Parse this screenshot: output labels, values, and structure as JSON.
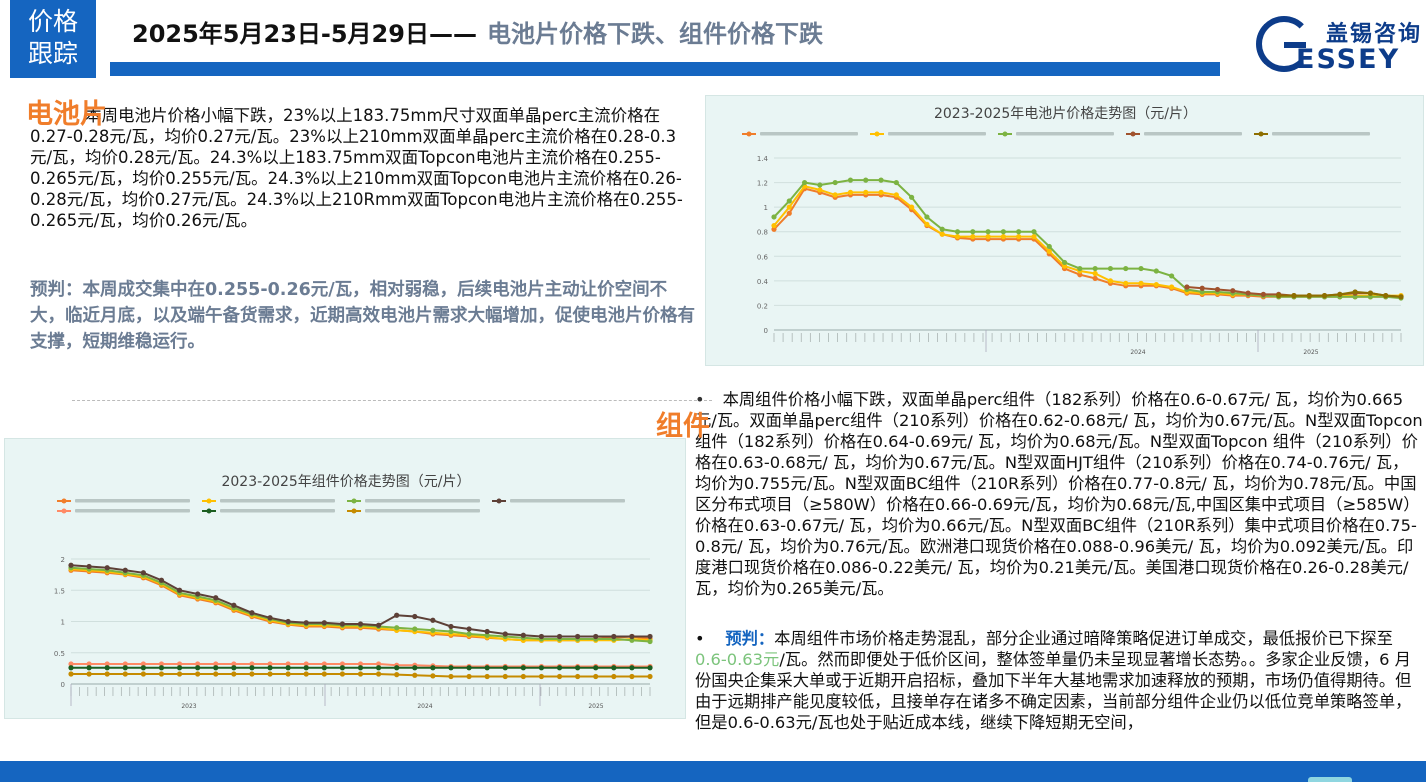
{
  "header": {
    "tag": "价格跟踪",
    "tag_line1": "价格",
    "tag_line2": "跟踪",
    "title_date": "2025年5月23日-5月29日——",
    "title_sub": "电池片价格下跌、组件价格下跌",
    "logo_cn": "盖锡咨询",
    "logo_en": "ESSEY"
  },
  "cell": {
    "label": "电池片",
    "text": "本周电池片价格小幅下跌，23%以上183.75mm尺寸双面单晶perc主流价格在0.27-0.28元/瓦，均价0.27元/瓦。23%以上210mm双面单晶perc主流价格在0.28-0.3元/瓦，均价0.28元/瓦。24.3%以上183.75mm双面Topcon电池片主流价格在0.255-0.265元/瓦，均价0.255元/瓦。24.3%以上210mm双面Topcon电池片主流价格在0.26-0.28元/瓦，均价0.27元/瓦。24.3%以上210Rmm双面Topcon电池片主流价格在0.255-0.265元/瓦，均价0.26元/瓦。",
    "forecast": "预判：本周成交集中在0.255-0.26元/瓦，相对弱稳，后续电池片主动让价空间不大，临近月底，以及端午备货需求，近期高效电池片需求大幅增加，促使电池片价格有支撑，短期维稳运行。"
  },
  "module": {
    "label": "组件",
    "bullet1": "•",
    "text": "本周组件价格小幅下跌，双面单晶perc组件（182系列）价格在0.6-0.67元/ 瓦，均价为0.665元/瓦。双面单晶perc组件（210系列）价格在0.62-0.68元/ 瓦，均价为0.67元/瓦。N型双面Topcon 组件（182系列）价格在0.64-0.69元/ 瓦，均价为0.68元/瓦。N型双面Topcon 组件（210系列）价格在0.63-0.68元/ 瓦，均价为0.67元/瓦。N型双面HJT组件（210系列）价格在0.74-0.76元/ 瓦，均价为0.755元/瓦。N型双面BC组件（210R系列）价格在0.77-0.8元/ 瓦，均价为0.78元/瓦。中国区分布式项目（≥580W）价格在0.66-0.69元/瓦，均价为0.68元/瓦,中国区集中式项目（≥585W）价格在0.63-0.67元/ 瓦，均价为0.66元/瓦。N型双面BC组件（210R系列）集中式项目价格在0.75-0.8元/ 瓦，均价为0.76元/瓦。欧洲港口现货价格在0.088-0.96美元/ 瓦，均价为0.092美元/瓦。印度港口现货价格在0.086-0.22美元/ 瓦，均价为0.21美元/瓦。美国港口现货价格在0.26-0.28美元/ 瓦，均价为0.265美元/瓦。",
    "bullet2": "•",
    "forecast_label": "预判：",
    "forecast_a": "本周组件市场价格走势混乱，部分企业通过暗降策略促进订单成交，最低报价已下探至 ",
    "forecast_green": "0.6-0.63元",
    "forecast_b": "/瓦。然而即便处于低价区间，整体签单量仍未呈现显著增长态势。。多家企业反馈，6 月份国央企集采大单或于近期开启招标，叠加下半年大基地需求加速释放的预期，市场仍值得期待。但由于远期排产能见度较低，且接单存在诸多不确定因素，当前部分组件企业仍以低位竞单策略签单，但是0.6-0.63元/瓦也处于贴近成本线，继续下降短期无空间，"
  },
  "chart_data": [
    {
      "type": "line",
      "title": "2023-2025年电池片价格走势图（元/片）",
      "ylim": [
        0,
        1.4
      ],
      "yticks": [
        "0",
        "0.2",
        "0.4",
        "0.6",
        "0.8",
        "1",
        "1.2",
        "1.4"
      ],
      "xgroups": [
        "2024",
        "2025"
      ],
      "legend_position": "top",
      "grid": true,
      "series": [
        {
          "color": "#f07d2a",
          "values": [
            0.82,
            0.95,
            1.15,
            1.12,
            1.08,
            1.1,
            1.1,
            1.1,
            1.08,
            0.98,
            0.85,
            0.78,
            0.75,
            0.74,
            0.74,
            0.74,
            0.74,
            0.74,
            0.62,
            0.5,
            0.45,
            0.42,
            0.38,
            0.36,
            0.36,
            0.36,
            0.34,
            0.3,
            0.29,
            0.29,
            0.28,
            0.28,
            0.27,
            0.27,
            0.27,
            0.27,
            0.27,
            0.27,
            0.27,
            0.27,
            0.27,
            0.27
          ]
        },
        {
          "color": "#ffc000",
          "values": [
            0.85,
            1.0,
            1.17,
            1.14,
            1.1,
            1.12,
            1.12,
            1.12,
            1.1,
            1.0,
            0.86,
            0.78,
            0.76,
            0.76,
            0.76,
            0.76,
            0.76,
            0.76,
            0.64,
            0.52,
            0.48,
            0.46,
            0.4,
            0.38,
            0.38,
            0.37,
            0.35,
            0.31,
            0.3,
            0.3,
            0.29,
            0.29,
            0.28,
            0.28,
            0.28,
            0.28,
            0.28,
            0.28,
            0.28,
            0.28,
            0.28,
            0.28
          ]
        },
        {
          "color": "#7cb342",
          "values": [
            0.92,
            1.05,
            1.2,
            1.18,
            1.2,
            1.22,
            1.22,
            1.22,
            1.2,
            1.08,
            0.92,
            0.82,
            0.8,
            0.8,
            0.8,
            0.8,
            0.8,
            0.8,
            0.68,
            0.55,
            0.5,
            0.5,
            0.5,
            0.5,
            0.5,
            0.48,
            0.44,
            0.33,
            0.31,
            0.31,
            0.3,
            0.29,
            0.28,
            0.27,
            0.27,
            0.27,
            0.27,
            0.27,
            0.27,
            0.27,
            0.27,
            0.26
          ]
        },
        {
          "color": "#a0522d",
          "values": [
            null,
            null,
            null,
            null,
            null,
            null,
            null,
            null,
            null,
            null,
            null,
            null,
            null,
            null,
            null,
            null,
            null,
            null,
            null,
            null,
            null,
            null,
            null,
            null,
            null,
            null,
            null,
            0.35,
            0.34,
            0.33,
            0.32,
            0.3,
            0.29,
            0.29,
            0.28,
            0.28,
            0.28,
            0.29,
            0.3,
            0.3,
            0.28,
            0.27
          ]
        },
        {
          "color": "#8d6e00",
          "values": [
            null,
            null,
            null,
            null,
            null,
            null,
            null,
            null,
            null,
            null,
            null,
            null,
            null,
            null,
            null,
            null,
            null,
            null,
            null,
            null,
            null,
            null,
            null,
            null,
            null,
            null,
            null,
            null,
            null,
            null,
            null,
            null,
            null,
            0.28,
            0.28,
            0.28,
            0.28,
            0.29,
            0.31,
            0.3,
            0.28,
            0.27
          ]
        }
      ]
    },
    {
      "type": "line",
      "title": "2023-2025年组件价格走势图（元/片）",
      "ylim": [
        0,
        2
      ],
      "yticks": [
        "0",
        "0.5",
        "1",
        "1.5",
        "2"
      ],
      "xgroups": [
        "2023",
        "2024",
        "2025"
      ],
      "legend_position": "top",
      "grid": true,
      "series": [
        {
          "color": "#f07d2a",
          "values": [
            1.82,
            1.8,
            1.78,
            1.75,
            1.7,
            1.58,
            1.42,
            1.36,
            1.3,
            1.18,
            1.08,
            1.0,
            0.95,
            0.92,
            0.92,
            0.9,
            0.9,
            0.88,
            0.86,
            0.84,
            0.8,
            0.78,
            0.76,
            0.74,
            0.72,
            0.7,
            0.7,
            0.7,
            0.7,
            0.72,
            0.74,
            0.76,
            0.72
          ]
        },
        {
          "color": "#ffc000",
          "values": [
            1.84,
            1.82,
            1.8,
            1.76,
            1.72,
            1.6,
            1.44,
            1.38,
            1.32,
            1.2,
            1.1,
            1.02,
            0.96,
            0.94,
            0.94,
            0.92,
            0.92,
            0.9,
            0.86,
            0.84,
            0.82,
            0.8,
            0.78,
            0.75,
            0.72,
            0.7,
            0.7,
            0.7,
            0.7,
            0.7,
            0.7,
            0.72,
            0.7
          ]
        },
        {
          "color": "#7cb342",
          "values": [
            1.86,
            1.84,
            1.82,
            1.78,
            1.74,
            1.62,
            1.46,
            1.4,
            1.34,
            1.22,
            1.12,
            1.04,
            0.98,
            0.96,
            0.96,
            0.94,
            0.94,
            0.92,
            0.9,
            0.88,
            0.86,
            0.84,
            0.8,
            0.78,
            0.76,
            0.74,
            0.72,
            0.72,
            0.72,
            0.72,
            0.72,
            0.7,
            0.68
          ]
        },
        {
          "color": "#5d4037",
          "values": [
            1.9,
            1.88,
            1.86,
            1.82,
            1.78,
            1.66,
            1.5,
            1.44,
            1.38,
            1.26,
            1.14,
            1.06,
            1.0,
            0.98,
            0.98,
            0.96,
            0.96,
            0.94,
            1.1,
            1.08,
            1.02,
            0.92,
            0.88,
            0.84,
            0.8,
            0.78,
            0.76,
            0.76,
            0.76,
            0.76,
            0.76,
            0.76,
            0.76
          ]
        },
        {
          "color": "#ff8a65",
          "values": [
            0.32,
            0.32,
            0.32,
            0.32,
            0.32,
            0.32,
            0.32,
            0.32,
            0.32,
            0.32,
            0.32,
            0.32,
            0.32,
            0.32,
            0.32,
            0.32,
            0.32,
            0.32,
            0.3,
            0.3,
            0.29,
            0.28,
            0.28,
            0.28,
            0.28,
            0.28,
            0.28,
            0.28,
            0.28,
            0.28,
            0.28,
            0.28,
            0.28
          ]
        },
        {
          "color": "#1b5e20",
          "values": [
            0.26,
            0.26,
            0.26,
            0.26,
            0.26,
            0.26,
            0.26,
            0.26,
            0.26,
            0.26,
            0.26,
            0.26,
            0.26,
            0.26,
            0.26,
            0.26,
            0.26,
            0.26,
            0.26,
            0.26,
            0.26,
            0.26,
            0.26,
            0.26,
            0.26,
            0.26,
            0.26,
            0.26,
            0.26,
            0.26,
            0.26,
            0.26,
            0.26
          ]
        },
        {
          "color": "#c58b00",
          "values": [
            0.16,
            0.16,
            0.16,
            0.16,
            0.16,
            0.16,
            0.16,
            0.16,
            0.16,
            0.16,
            0.16,
            0.16,
            0.16,
            0.16,
            0.16,
            0.16,
            0.16,
            0.16,
            0.15,
            0.14,
            0.13,
            0.12,
            0.12,
            0.12,
            0.12,
            0.12,
            0.12,
            0.12,
            0.12,
            0.12,
            0.12,
            0.12,
            0.12
          ]
        }
      ]
    }
  ]
}
